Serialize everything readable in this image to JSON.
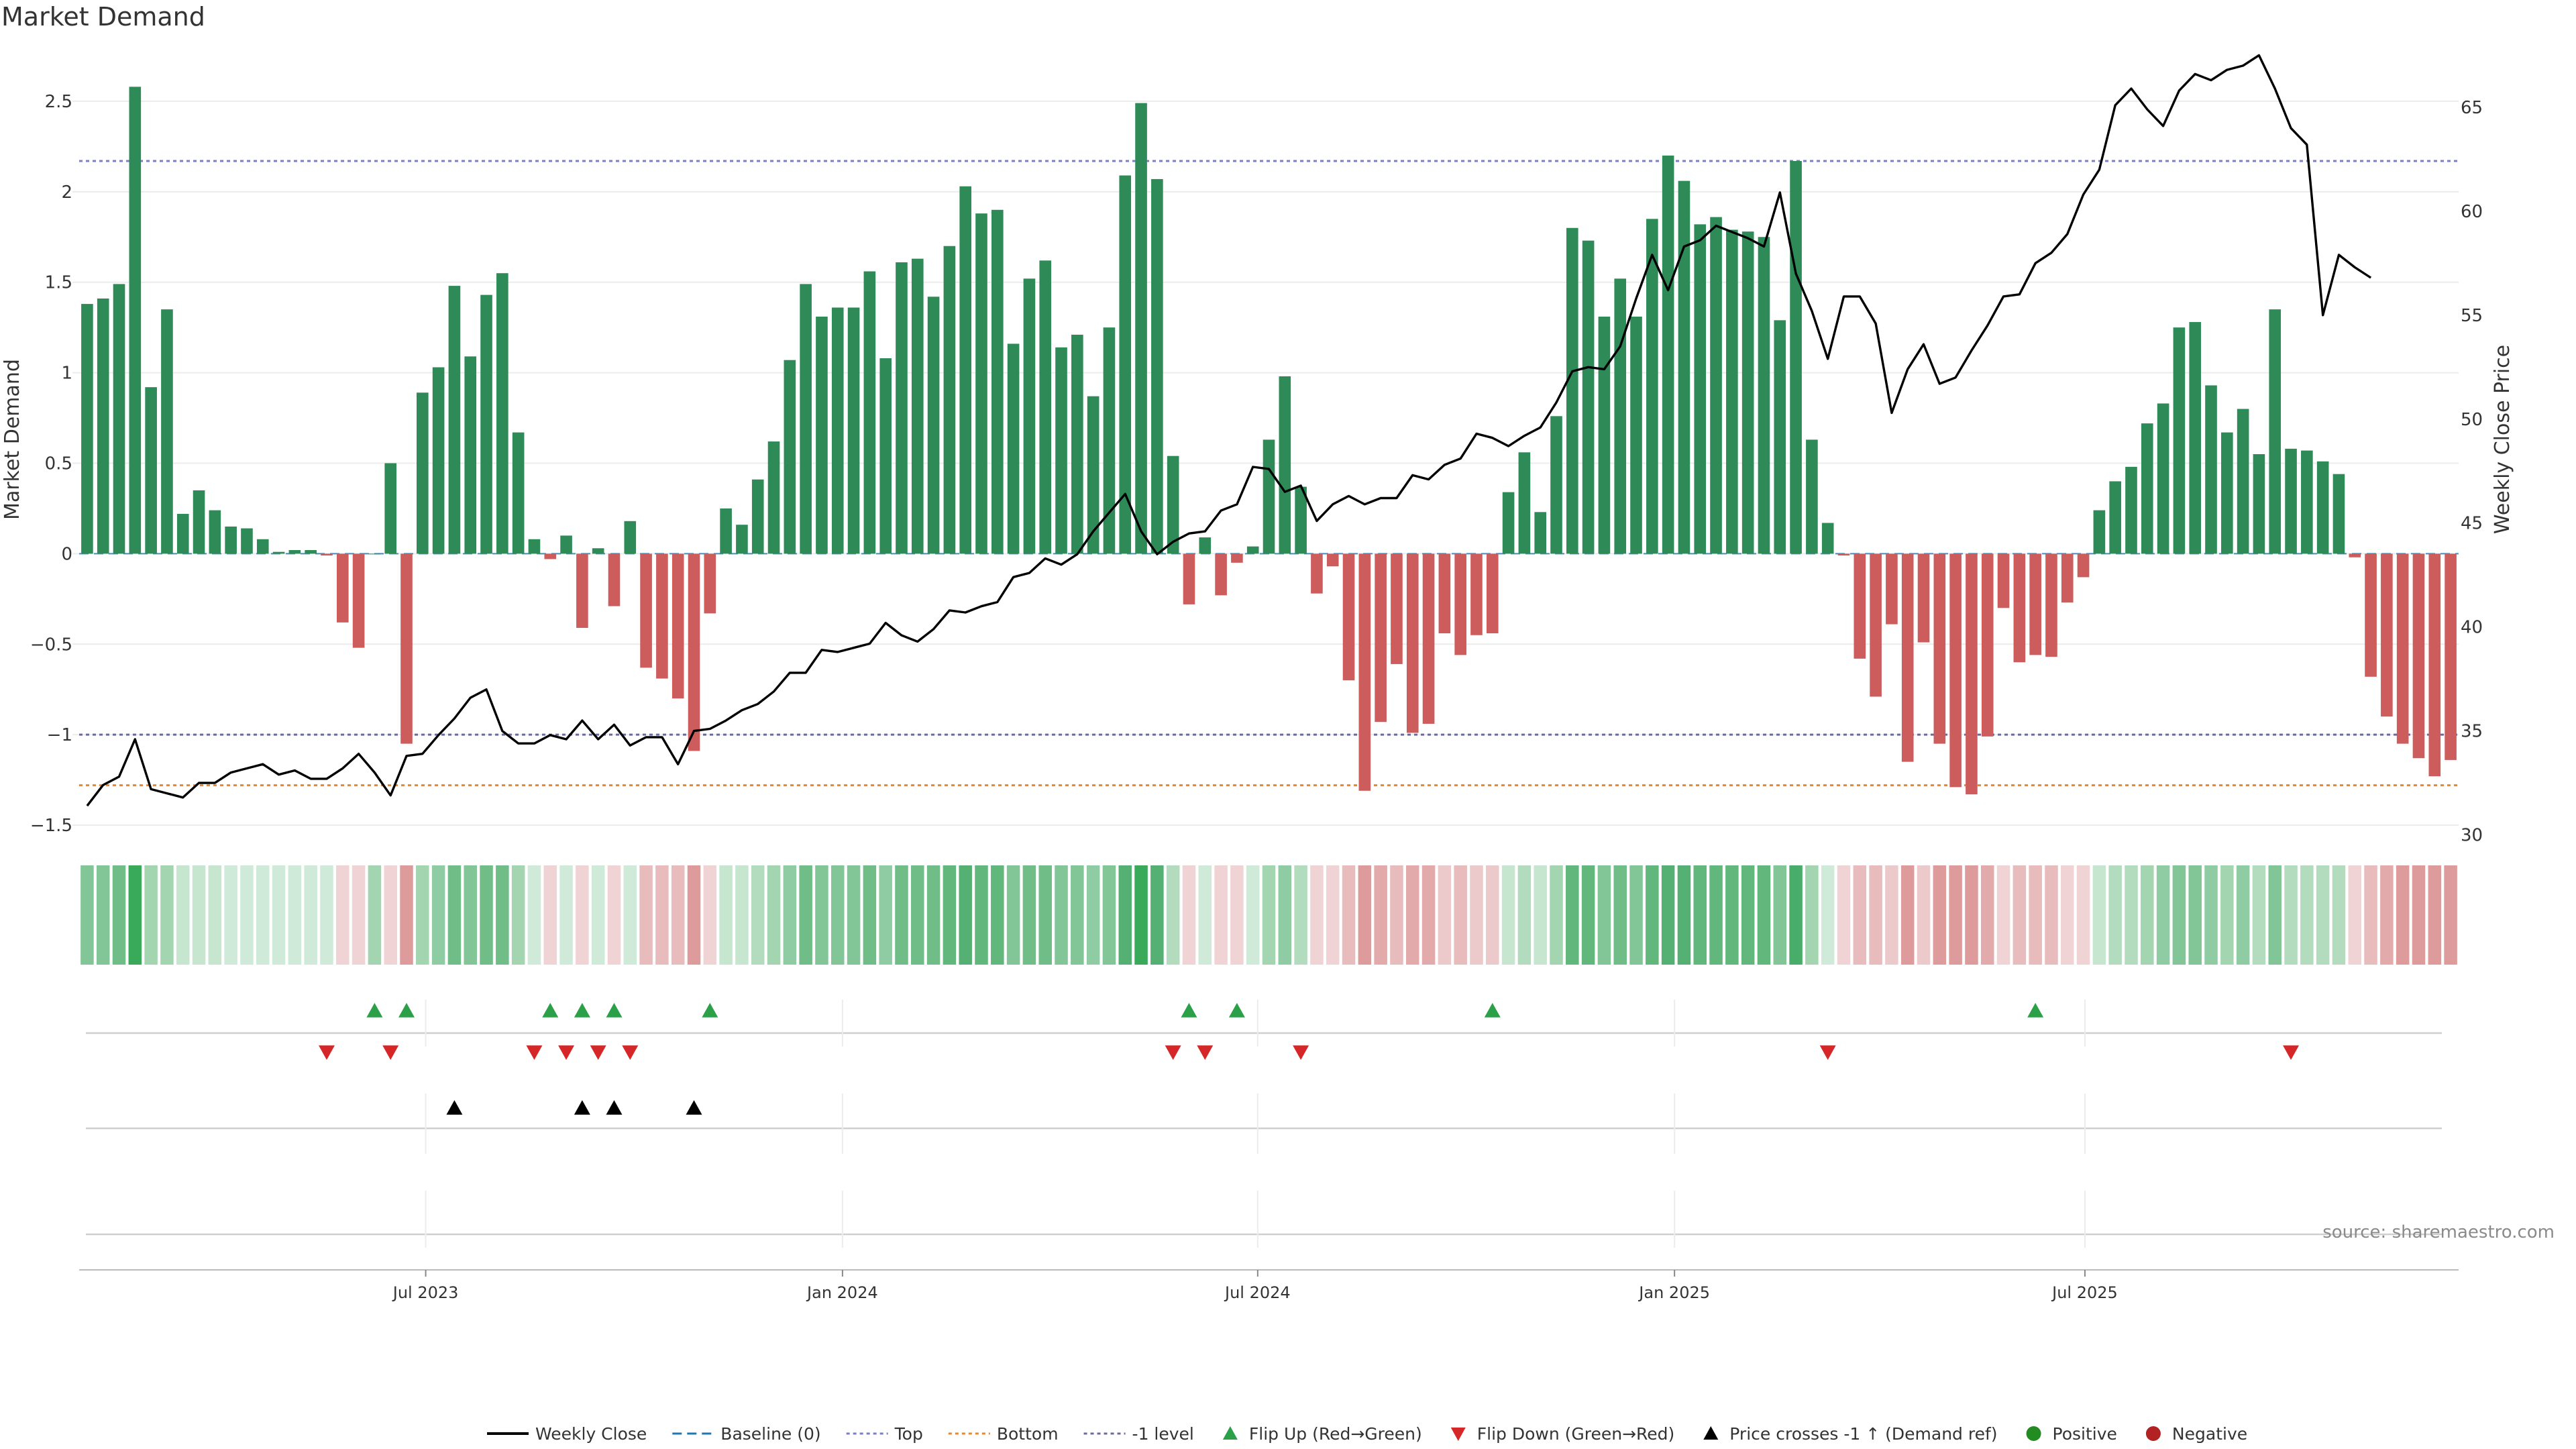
{
  "chart_data": {
    "type": "bar",
    "title": "Market Demand",
    "ylabel": "Market Demand",
    "y2label": "Weekly Close Price",
    "ylim": [
      -1.6,
      2.8
    ],
    "y2lim": [
      29.6,
      67.9
    ],
    "yticks": [
      -1.5,
      -1,
      -0.5,
      0,
      0.5,
      1,
      1.5,
      2,
      2.5
    ],
    "ytick_labels": [
      "−1.5",
      "−1",
      "−0.5",
      "0",
      "0.5",
      "1",
      "1.5",
      "2",
      "2.5"
    ],
    "y2ticks": [
      30,
      35,
      40,
      45,
      50,
      55,
      60,
      65
    ],
    "y2tick_labels": [
      "30",
      "35",
      "40",
      "45",
      "50",
      "55",
      "60",
      "65"
    ],
    "xticks": [
      {
        "label": "Jul 2023",
        "index": 21.2
      },
      {
        "label": "Jan 2024",
        "index": 47.3
      },
      {
        "label": "Jul 2024",
        "index": 73.3
      },
      {
        "label": "Jan 2025",
        "index": 99.4
      },
      {
        "label": "Jul 2025",
        "index": 125.1
      }
    ],
    "reference_lines": [
      {
        "name": "Top",
        "value": 2.17,
        "color": "#7b7fc4"
      },
      {
        "name": "-1 level",
        "value": -1.0,
        "color": "#6b6b9a"
      },
      {
        "name": "Bottom",
        "value": -1.28,
        "color": "#e0893a"
      }
    ],
    "demand": [
      1.38,
      1.41,
      1.49,
      2.58,
      0.92,
      1.35,
      0.22,
      0.35,
      0.24,
      0.15,
      0.14,
      0.08,
      0.01,
      0.02,
      0.02,
      -0.01,
      -0.38,
      -0.52,
      0.0,
      0.5,
      -1.05,
      0.89,
      1.03,
      1.48,
      1.09,
      1.43,
      1.55,
      0.67,
      0.08,
      -0.03,
      0.1,
      -0.41,
      0.03,
      -0.29,
      0.18,
      -0.63,
      -0.69,
      -0.8,
      -1.09,
      -0.33,
      0.25,
      0.16,
      0.41,
      0.62,
      1.07,
      1.49,
      1.31,
      1.36,
      1.36,
      1.56,
      1.08,
      1.61,
      1.63,
      1.42,
      1.7,
      2.03,
      1.88,
      1.9,
      1.16,
      1.52,
      1.62,
      1.14,
      1.21,
      0.87,
      1.25,
      2.09,
      2.49,
      2.07,
      0.54,
      -0.28,
      0.09,
      -0.23,
      -0.05,
      0.04,
      0.63,
      0.98,
      0.37,
      -0.22,
      -0.07,
      -0.7,
      -1.31,
      -0.93,
      -0.61,
      -0.99,
      -0.94,
      -0.44,
      -0.56,
      -0.45,
      -0.44,
      0.34,
      0.56,
      0.23,
      0.76,
      1.8,
      1.73,
      1.31,
      1.52,
      1.31,
      1.85,
      2.2,
      2.06,
      1.82,
      1.86,
      1.79,
      1.78,
      1.75,
      1.29,
      2.17,
      0.63,
      0.17,
      -0.01,
      -0.58,
      -0.79,
      -0.39,
      -1.15,
      -0.49,
      -1.05,
      -1.29,
      -1.33,
      -1.01,
      -0.3,
      -0.6,
      -0.56,
      -0.57,
      -0.27,
      -0.13,
      0.24,
      0.4,
      0.48,
      0.72,
      0.83,
      1.25,
      1.28,
      0.93,
      0.67,
      0.8,
      0.55,
      1.35,
      0.58,
      0.57,
      0.51,
      0.44,
      -0.02,
      -0.68,
      -0.9,
      -1.05,
      -1.13,
      -1.23,
      -1.14
    ],
    "weekly_close": [
      31.4,
      32.4,
      32.8,
      34.6,
      32.2,
      32.0,
      31.8,
      32.5,
      32.5,
      33.0,
      33.2,
      33.4,
      32.9,
      33.1,
      32.7,
      32.7,
      33.2,
      33.9,
      33.0,
      31.9,
      33.8,
      33.9,
      34.8,
      35.6,
      36.6,
      37.0,
      35.0,
      34.4,
      34.4,
      34.8,
      34.6,
      35.5,
      34.6,
      35.3,
      34.3,
      34.7,
      34.7,
      33.4,
      35.0,
      35.1,
      35.5,
      36.0,
      36.3,
      36.9,
      37.8,
      37.8,
      38.9,
      38.8,
      39.0,
      39.2,
      40.2,
      39.6,
      39.3,
      39.9,
      40.8,
      40.7,
      41.0,
      41.2,
      42.4,
      42.6,
      43.3,
      43.0,
      43.5,
      44.6,
      45.5,
      46.4,
      44.6,
      43.5,
      44.1,
      44.5,
      44.6,
      45.6,
      45.9,
      47.7,
      47.6,
      46.5,
      46.8,
      45.1,
      45.9,
      46.3,
      45.9,
      46.2,
      46.2,
      47.3,
      47.1,
      47.8,
      48.1,
      49.3,
      49.1,
      48.7,
      49.2,
      49.6,
      50.8,
      52.3,
      52.5,
      52.4,
      53.5,
      55.8,
      57.9,
      56.2,
      58.3,
      58.6,
      59.3,
      59.0,
      58.7,
      58.3,
      60.9,
      57.0,
      55.2,
      52.9,
      55.9,
      55.9,
      54.6,
      50.3,
      52.4,
      53.6,
      51.7,
      52.0,
      53.3,
      54.5,
      55.9,
      56.0,
      57.5,
      58.0,
      58.9,
      60.8,
      62.0,
      65.1,
      65.9,
      64.9,
      64.1,
      65.8,
      66.6,
      66.3,
      66.8,
      67.0,
      67.5,
      65.9,
      64.0,
      63.2,
      55.0,
      57.9,
      57.3,
      56.8
    ],
    "heat_colors": [
      "#82c597",
      "#82c597",
      "#70bd88",
      "#39a95a",
      "#a2d5b0",
      "#a2d5b0",
      "#c6e6d0",
      "#c6e6d0",
      "#c6e6d0",
      "#d0eada",
      "#d0eada",
      "#d0eada",
      "#d0eada",
      "#d0eada",
      "#d0eada",
      "#d0eada",
      "#f0d4d5",
      "#f0d4d5",
      "#a2d5b0",
      "#f0d4d5",
      "#de9b9c",
      "#a2d5b0",
      "#90cca3",
      "#70bd88",
      "#82c597",
      "#70bd88",
      "#70bd88",
      "#a2d5b0",
      "#d0eada",
      "#f0d4d5",
      "#d0eada",
      "#f0d4d5",
      "#d0eada",
      "#f0d4d5",
      "#d0eada",
      "#e8bcbd",
      "#e8bcbd",
      "#e8bcbd",
      "#de9b9c",
      "#f0d4d5",
      "#c6e6d0",
      "#c6e6d0",
      "#b2dcbd",
      "#a2d5b0",
      "#90cca3",
      "#70bd88",
      "#82c597",
      "#82c597",
      "#82c597",
      "#70bd88",
      "#90cca3",
      "#70bd88",
      "#70bd88",
      "#70bd88",
      "#62b77c",
      "#55b173",
      "#62b77c",
      "#62b77c",
      "#82c597",
      "#70bd88",
      "#70bd88",
      "#82c597",
      "#82c597",
      "#90cca3",
      "#82c597",
      "#55b173",
      "#39a95a",
      "#55b173",
      "#b2dcbd",
      "#f0d4d5",
      "#d0eada",
      "#f0d4d5",
      "#f0d4d5",
      "#d0eada",
      "#a2d5b0",
      "#90cca3",
      "#b2dcbd",
      "#f0d4d5",
      "#f0d4d5",
      "#e8bcbd",
      "#de9b9c",
      "#e3aaab",
      "#e8bcbd",
      "#e3aaab",
      "#e3aaab",
      "#eccacb",
      "#e8bcbd",
      "#eccacb",
      "#eccacb",
      "#c6e6d0",
      "#b2dcbd",
      "#c6e6d0",
      "#a2d5b0",
      "#62b77c",
      "#62b77c",
      "#82c597",
      "#70bd88",
      "#82c597",
      "#62b77c",
      "#55b173",
      "#55b173",
      "#62b77c",
      "#62b77c",
      "#62b77c",
      "#62b77c",
      "#62b77c",
      "#82c597",
      "#48ad68",
      "#a2d5b0",
      "#d0eada",
      "#f0d4d5",
      "#e8bcbd",
      "#e8bcbd",
      "#eccacb",
      "#de9b9c",
      "#eccacb",
      "#de9b9c",
      "#de9b9c",
      "#de9b9c",
      "#e3aaab",
      "#f0d4d5",
      "#e8bcbd",
      "#e8bcbd",
      "#e8bcbd",
      "#f0d4d5",
      "#f0d4d5",
      "#c6e6d0",
      "#b2dcbd",
      "#b2dcbd",
      "#a2d5b0",
      "#90cca3",
      "#82c597",
      "#82c597",
      "#90cca3",
      "#a2d5b0",
      "#90cca3",
      "#b2dcbd",
      "#82c597",
      "#b2dcbd",
      "#b2dcbd",
      "#b2dcbd",
      "#b2dcbd",
      "#f0d4d5",
      "#e8bcbd",
      "#e3aaab",
      "#de9b9c",
      "#de9b9c",
      "#de9b9c",
      "#de9b9c"
    ],
    "flip_up_indices": [
      18,
      20,
      29,
      31,
      33,
      39,
      69,
      72,
      88,
      122
    ],
    "flip_down_indices": [
      15,
      19,
      28,
      30,
      32,
      34,
      68,
      70,
      76,
      109,
      138
    ],
    "price_cross_indices": [
      23,
      31,
      33,
      38
    ],
    "positive_color": "#2e8b57",
    "negative_color": "#cd5c5c",
    "legend_position": "bottom-center",
    "legend": [
      {
        "label": "Weekly Close",
        "kind": "line",
        "color": "#000000"
      },
      {
        "label": "Baseline (0)",
        "kind": "dash",
        "color": "#1f77b4"
      },
      {
        "label": "Top",
        "kind": "dot",
        "color": "#7b7fc4"
      },
      {
        "label": "Bottom",
        "kind": "dot",
        "color": "#e0893a"
      },
      {
        "label": "-1 level",
        "kind": "dot",
        "color": "#6b6b9a"
      },
      {
        "label": "Flip Up (Red→Green)",
        "kind": "tri-up",
        "color": "#2ca048"
      },
      {
        "label": "Flip Down (Green→Red)",
        "kind": "tri-down",
        "color": "#d62728"
      },
      {
        "label": "Price crosses -1 ↑ (Demand ref)",
        "kind": "tri-up",
        "color": "#000000"
      },
      {
        "label": "Positive",
        "kind": "circle",
        "color": "#228b22"
      },
      {
        "label": "Negative",
        "kind": "circle",
        "color": "#b22222"
      }
    ],
    "source": "source: sharemaestro.com"
  }
}
